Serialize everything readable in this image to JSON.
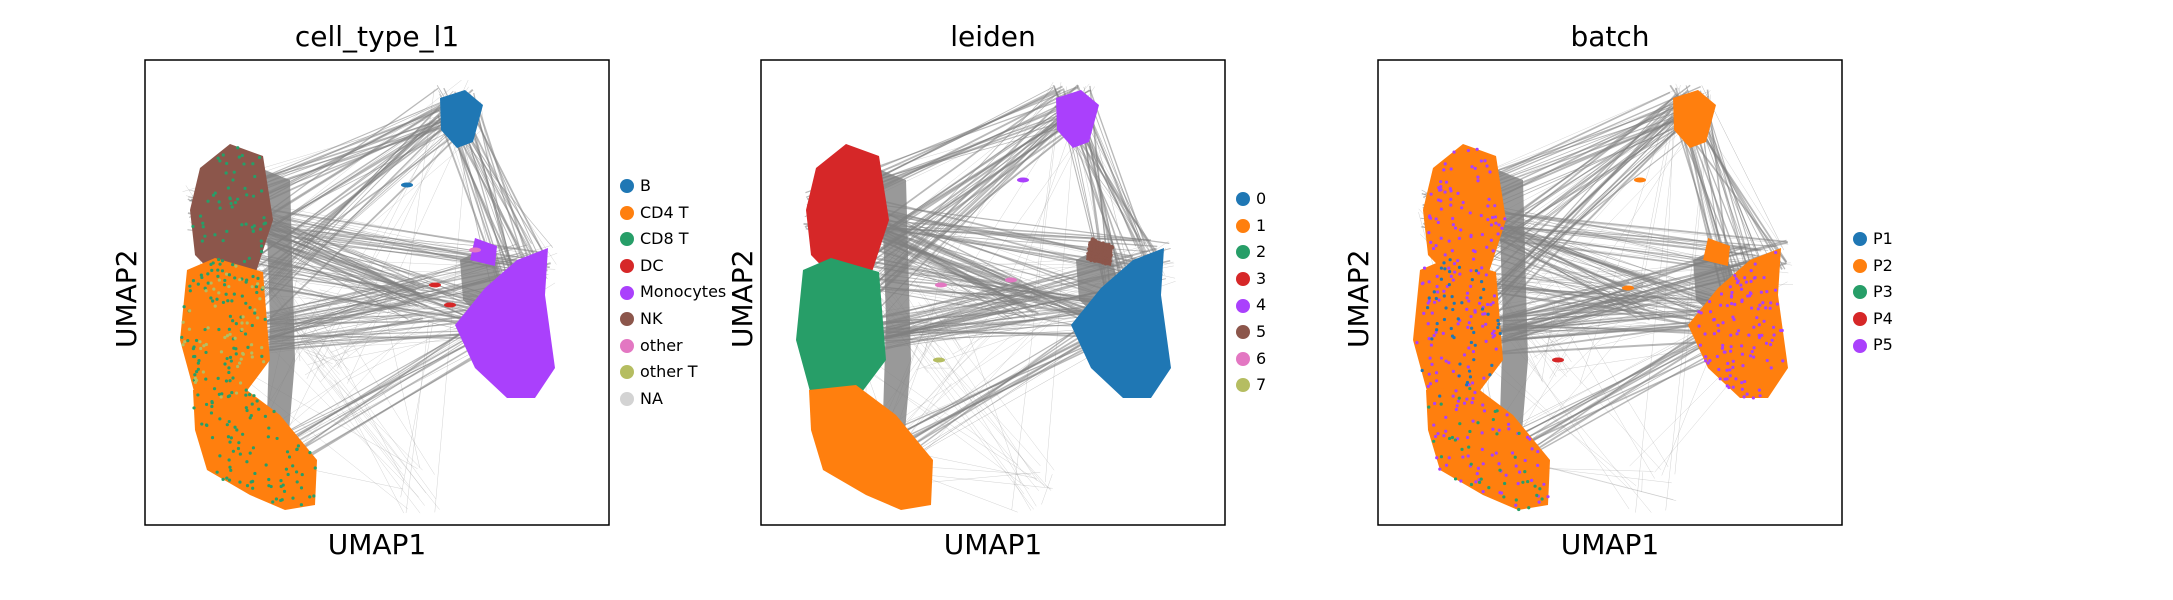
{
  "chart_data": [
    {
      "type": "scatter",
      "title": "cell_type_l1",
      "xlabel": "UMAP1",
      "ylabel": "UMAP2",
      "grid": false,
      "legend_position": "right",
      "legend": [
        {
          "label": "B",
          "color": "#1f77b4"
        },
        {
          "label": "CD4 T",
          "color": "#ff7f0e"
        },
        {
          "label": "CD8 T",
          "color": "#279e68"
        },
        {
          "label": "DC",
          "color": "#d62728"
        },
        {
          "label": "Monocytes",
          "color": "#aa40fc"
        },
        {
          "label": "NK",
          "color": "#8c564b"
        },
        {
          "label": "other",
          "color": "#e377c2"
        },
        {
          "label": "other T",
          "color": "#b5bd61"
        },
        {
          "label": "NA",
          "color": "#d3d3d3"
        }
      ]
    },
    {
      "type": "scatter",
      "title": "leiden",
      "xlabel": "UMAP1",
      "ylabel": "UMAP2",
      "grid": false,
      "legend_position": "right",
      "legend": [
        {
          "label": "0",
          "color": "#1f77b4"
        },
        {
          "label": "1",
          "color": "#ff7f0e"
        },
        {
          "label": "2",
          "color": "#279e68"
        },
        {
          "label": "3",
          "color": "#d62728"
        },
        {
          "label": "4",
          "color": "#aa40fc"
        },
        {
          "label": "5",
          "color": "#8c564b"
        },
        {
          "label": "6",
          "color": "#e377c2"
        },
        {
          "label": "7",
          "color": "#b5bd61"
        }
      ]
    },
    {
      "type": "scatter",
      "title": "batch",
      "xlabel": "UMAP1",
      "ylabel": "UMAP2",
      "grid": false,
      "legend_position": "right",
      "legend": [
        {
          "label": "P1",
          "color": "#1f77b4"
        },
        {
          "label": "P2",
          "color": "#ff7f0e"
        },
        {
          "label": "P3",
          "color": "#279e68"
        },
        {
          "label": "P4",
          "color": "#d62728"
        },
        {
          "label": "P5",
          "color": "#aa40fc"
        }
      ]
    }
  ],
  "edge_color": "#808080"
}
